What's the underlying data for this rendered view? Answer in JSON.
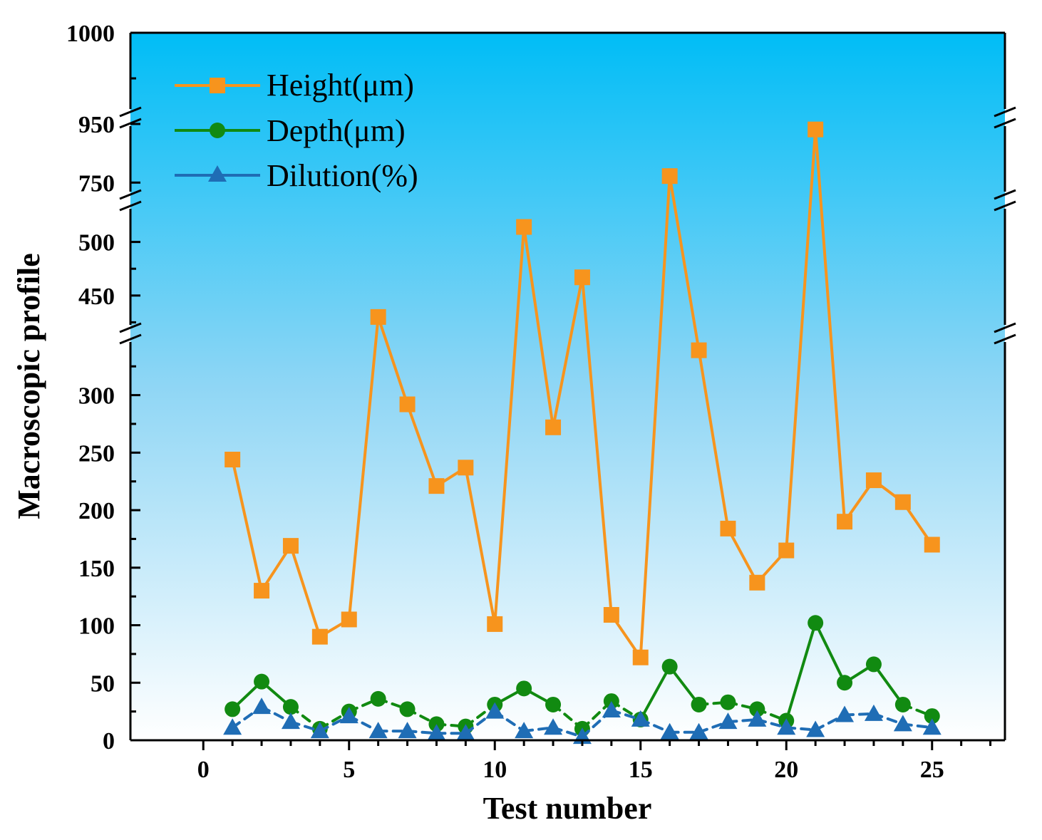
{
  "chart_data": {
    "type": "line",
    "title": "",
    "xlabel": "Test number",
    "ylabel": "Macroscopic profile",
    "xlim": [
      -2.5,
      27.5
    ],
    "x_ticks": [
      0,
      5,
      10,
      15,
      20,
      25
    ],
    "y_ticks": [
      0,
      50,
      100,
      150,
      200,
      250,
      300,
      450,
      500,
      750,
      950,
      1000
    ],
    "y_break_segments": [
      [
        0,
        340
      ],
      [
        400,
        525
      ],
      [
        725,
        760
      ],
      [
        925,
        1000
      ]
    ],
    "legend_position": "top-left",
    "x": [
      1,
      2,
      3,
      4,
      5,
      6,
      7,
      8,
      9,
      10,
      11,
      12,
      13,
      14,
      15,
      16,
      17,
      18,
      19,
      20,
      21,
      22,
      23,
      24,
      25
    ],
    "series": [
      {
        "name": "Height(μm)",
        "marker": "square",
        "color": "#F7941D",
        "line_style": "solid",
        "values": [
          244,
          130,
          169,
          90,
          105,
          430,
          292,
          221,
          237,
          101,
          514,
          272,
          467,
          109,
          72,
          755,
          339,
          184,
          137,
          165,
          947,
          190,
          226,
          207,
          170
        ]
      },
      {
        "name": "Depth(μm)",
        "marker": "circle",
        "color": "#118A11",
        "line_style": "mixed",
        "values": [
          27,
          51,
          29,
          10,
          25,
          36,
          27,
          14,
          12,
          31,
          45,
          31,
          10,
          34,
          18,
          64,
          31,
          33,
          27,
          17,
          102,
          50,
          66,
          31,
          21
        ]
      },
      {
        "name": "Dilution(%)",
        "marker": "triangle",
        "color": "#1F6DB5",
        "line_style": "dashed",
        "values": [
          11,
          29,
          16,
          8,
          21,
          8,
          8,
          6,
          6,
          25,
          8,
          11,
          3,
          26,
          18,
          7,
          7,
          16,
          18,
          11,
          9,
          22,
          23,
          14,
          11
        ]
      }
    ]
  }
}
